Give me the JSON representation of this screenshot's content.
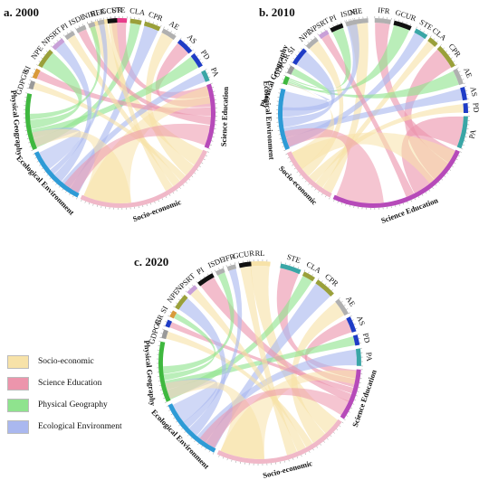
{
  "colors": {
    "Socio-economic": "#f7e2a8",
    "Science Education": "#ec95ac",
    "Physical Geography": "#8fe38e",
    "Ecological Environment": "#aab8ef"
  },
  "legend": [
    {
      "label": "Socio-economic",
      "color": "#f7e2a8"
    },
    {
      "label": "Science Education",
      "color": "#ec95ac"
    },
    {
      "label": "Physical Geography",
      "color": "#8fe38e"
    },
    {
      "label": "Ecological Environment",
      "color": "#aab8ef"
    }
  ],
  "panels": [
    {
      "title": "a. 2000",
      "sectors": [
        {
          "label": "RL",
          "color": "#f7e2a8"
        },
        {
          "label": "STE",
          "color": "#e73c8a"
        },
        {
          "label": "CLA",
          "color": "#9aa03a"
        },
        {
          "label": "CPR",
          "color": "#9aa03a"
        },
        {
          "label": "AE",
          "color": "#b0b0b0"
        },
        {
          "label": "AS",
          "color": "#1f3cc6"
        },
        {
          "label": "PD",
          "color": "#1f3cc6"
        },
        {
          "label": "PA",
          "color": "#3aa6a6"
        },
        {
          "label": "Science Education",
          "color": "#b64ab9"
        },
        {
          "label": "Socio-economic",
          "color": "#f0b8c8"
        },
        {
          "label": "Ecological Environment",
          "color": "#2e9bd6"
        },
        {
          "label": "Physical Geography",
          "color": "#3fb83f"
        },
        {
          "label": "GDPGR",
          "color": "#999999"
        },
        {
          "label": "SI",
          "color": "#d99a3a"
        },
        {
          "label": "NPE",
          "color": "#9aa03a"
        },
        {
          "label": "NPSRT",
          "color": "#c8a0d8"
        },
        {
          "label": "PI",
          "color": "#b0b0b0"
        },
        {
          "label": "ISDE",
          "color": "#b0b0b0"
        },
        {
          "label": "NIE",
          "color": "#b0b0b0"
        },
        {
          "label": "IFR",
          "color": "#b0b0b0"
        },
        {
          "label": "GCUR",
          "color": "#111111"
        }
      ]
    },
    {
      "title": "b. 2010",
      "sectors": [
        {
          "label": "NIE",
          "color": "#b0b0b0"
        },
        {
          "label": "IFR",
          "color": "#b0b0b0"
        },
        {
          "label": "GCUR",
          "color": "#111111"
        },
        {
          "label": "STE",
          "color": "#3aa6a6"
        },
        {
          "label": "CLA",
          "color": "#9aa03a"
        },
        {
          "label": "CPR",
          "color": "#9aa03a"
        },
        {
          "label": "AE",
          "color": "#b0b0b0"
        },
        {
          "label": "AS",
          "color": "#1f3cc6"
        },
        {
          "label": "PD",
          "color": "#1f3cc6"
        },
        {
          "label": "PA",
          "color": "#3aa6a6"
        },
        {
          "label": "Science Education",
          "color": "#b64ab9"
        },
        {
          "label": "Socio-economic",
          "color": "#f0b8c8"
        },
        {
          "label": "Ecological Environment",
          "color": "#2e9bd6"
        },
        {
          "label": "Physical Geography",
          "color": "#3fb83f"
        },
        {
          "label": "GDPGR",
          "color": "#999999"
        },
        {
          "label": "SI",
          "color": "#1f3cc6"
        },
        {
          "label": "NPE",
          "color": "#b0b0b0"
        },
        {
          "label": "NPSRT",
          "color": "#c8a0d8"
        },
        {
          "label": "PI",
          "color": "#111111"
        },
        {
          "label": "ISDE",
          "color": "#b0b0b0"
        }
      ]
    },
    {
      "title": "c. 2020",
      "sectors": [
        {
          "label": "RL",
          "color": "#f7e2a8"
        },
        {
          "label": "STE",
          "color": "#3aa6a6"
        },
        {
          "label": "CLA",
          "color": "#9aa03a"
        },
        {
          "label": "CPR",
          "color": "#9aa03a"
        },
        {
          "label": "AE",
          "color": "#b0b0b0"
        },
        {
          "label": "AS",
          "color": "#1f3cc6"
        },
        {
          "label": "PD",
          "color": "#1f3cc6"
        },
        {
          "label": "PA",
          "color": "#3aa6a6"
        },
        {
          "label": "Science Education",
          "color": "#b64ab9"
        },
        {
          "label": "Socio-economic",
          "color": "#f0b8c8"
        },
        {
          "label": "Ecological Environment",
          "color": "#2e9bd6"
        },
        {
          "label": "Physical Geography",
          "color": "#3fb83f"
        },
        {
          "label": "GDPGR",
          "color": "#999999"
        },
        {
          "label": "GR",
          "color": "#1f3cc6"
        },
        {
          "label": "SI",
          "color": "#d99a3a"
        },
        {
          "label": "NPE",
          "color": "#9aa03a"
        },
        {
          "label": "NPSRT",
          "color": "#c8a0d8"
        },
        {
          "label": "PI",
          "color": "#111111"
        },
        {
          "label": "ISDE",
          "color": "#b0b0b0"
        },
        {
          "label": "IFR",
          "color": "#b0b0b0"
        },
        {
          "label": "GCUR",
          "color": "#111111"
        }
      ]
    }
  ]
}
